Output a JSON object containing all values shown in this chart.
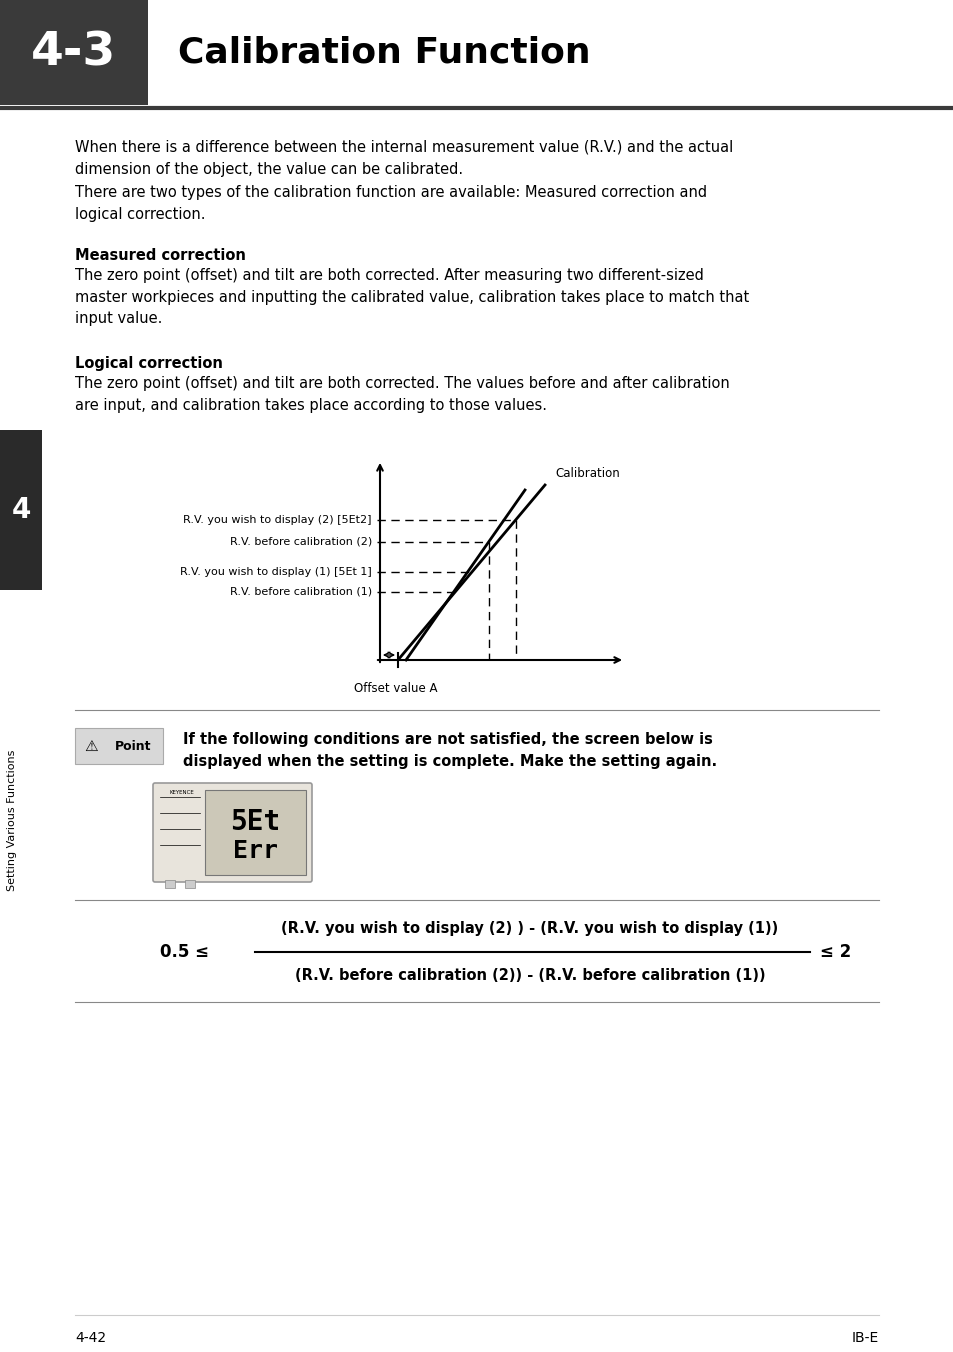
{
  "page_bg": "#ffffff",
  "header_dark_box_color": "#3a3a3a",
  "header_text": "4-3",
  "header_title": "Calibration Function",
  "header_line_color": "#555555",
  "body_text_1a": "When there is a difference between the internal measurement value (R.V.) and the actual",
  "body_text_1b": "dimension of the object, the value can be calibrated.",
  "body_text_2a": "There are two types of the calibration function are available: Measured correction and",
  "body_text_2b": "logical correction.",
  "section1_title": "Measured correction",
  "section1_body": "The zero point (offset) and tilt are both corrected. After measuring two different-sized\nmaster workpieces and inputting the calibrated value, calibration takes place to match that\ninput value.",
  "section2_title": "Logical correction",
  "section2_body": "The zero point (offset) and tilt are both corrected. The values before and after calibration\nare input, and calibration takes place according to those values.",
  "sidebar_number": "4",
  "sidebar_label": "Setting Various Functions",
  "point_note_1": "If the following conditions are not satisfied, the screen below is",
  "point_note_2": "displayed when the setting is complete. Make the setting again.",
  "formula_left": "0.5 ≤",
  "formula_fraction_top": "(R.V. you wish to display (2) ) - (R.V. you wish to display (1))",
  "formula_fraction_bottom": "(R.V. before calibration (2)) - (R.V. before calibration (1))",
  "formula_right": "≤ 2",
  "footer_left": "4-42",
  "footer_right": "IB-E",
  "diagram_rv_display_2": "R.V. you wish to display (2) [5Et2]",
  "diagram_rv_before_2": "R.V. before calibration (2)",
  "diagram_rv_display_1": "R.V. you wish to display (1) [5Et 1]",
  "diagram_rv_before_1": "R.V. before calibration (1)",
  "diagram_offset": "Offset value A",
  "diagram_calibration": "Calibration"
}
